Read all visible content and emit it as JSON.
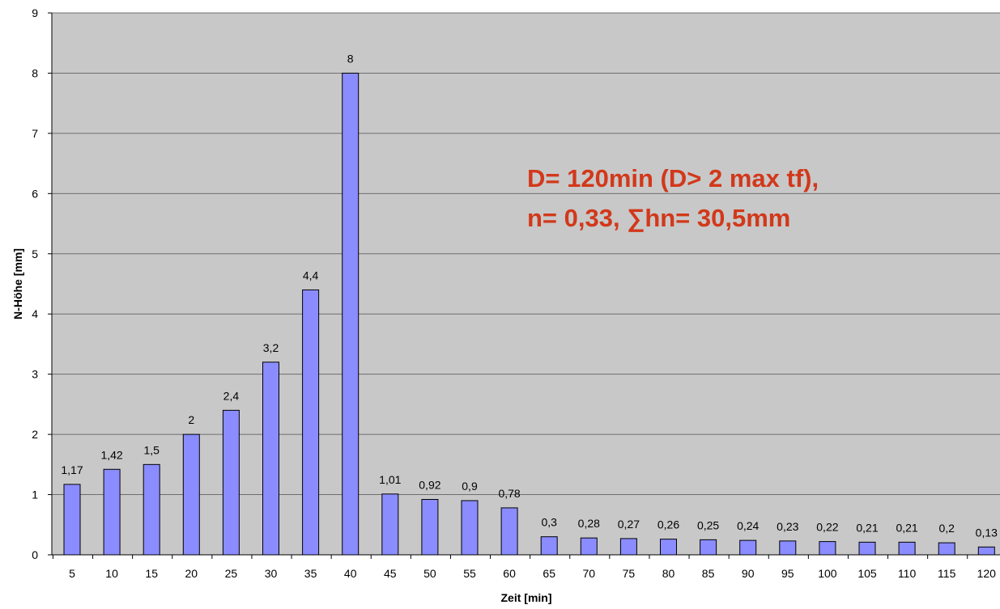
{
  "chart_data": {
    "type": "bar",
    "title": "",
    "xlabel": "Zeit [min]",
    "ylabel": "N-Höhe [mm]",
    "ylim": [
      0,
      9
    ],
    "yticks": [
      0,
      1,
      2,
      3,
      4,
      5,
      6,
      7,
      8,
      9
    ],
    "grid": true,
    "categories": [
      "5",
      "10",
      "15",
      "20",
      "25",
      "30",
      "35",
      "40",
      "45",
      "50",
      "55",
      "60",
      "65",
      "70",
      "75",
      "80",
      "85",
      "90",
      "95",
      "100",
      "105",
      "110",
      "115",
      "120"
    ],
    "values": [
      1.17,
      1.42,
      1.5,
      2,
      2.4,
      3.2,
      4.4,
      8,
      1.01,
      0.92,
      0.9,
      0.78,
      0.3,
      0.28,
      0.27,
      0.26,
      0.25,
      0.24,
      0.23,
      0.22,
      0.21,
      0.21,
      0.2,
      0.13
    ],
    "data_labels": [
      "1,17",
      "1,42",
      "1,5",
      "2",
      "2,4",
      "3,2",
      "4,4",
      "8",
      "1,01",
      "0,92",
      "0,9",
      "0,78",
      "0,3",
      "0,28",
      "0,27",
      "0,26",
      "0,25",
      "0,24",
      "0,23",
      "0,22",
      "0,21",
      "0,21",
      "0,2",
      "0,13"
    ],
    "annotation": {
      "lines": [
        "D= 120min (D> 2 max tf),",
        "n= 0,33, ∑hn= 30,5mm"
      ],
      "color": "#d2381a"
    },
    "colors": {
      "plot_background": "#c8c8c8",
      "bar_fill": "#8a8cff",
      "bar_stroke": "#000000",
      "gridline": "#6e6e6e"
    }
  }
}
